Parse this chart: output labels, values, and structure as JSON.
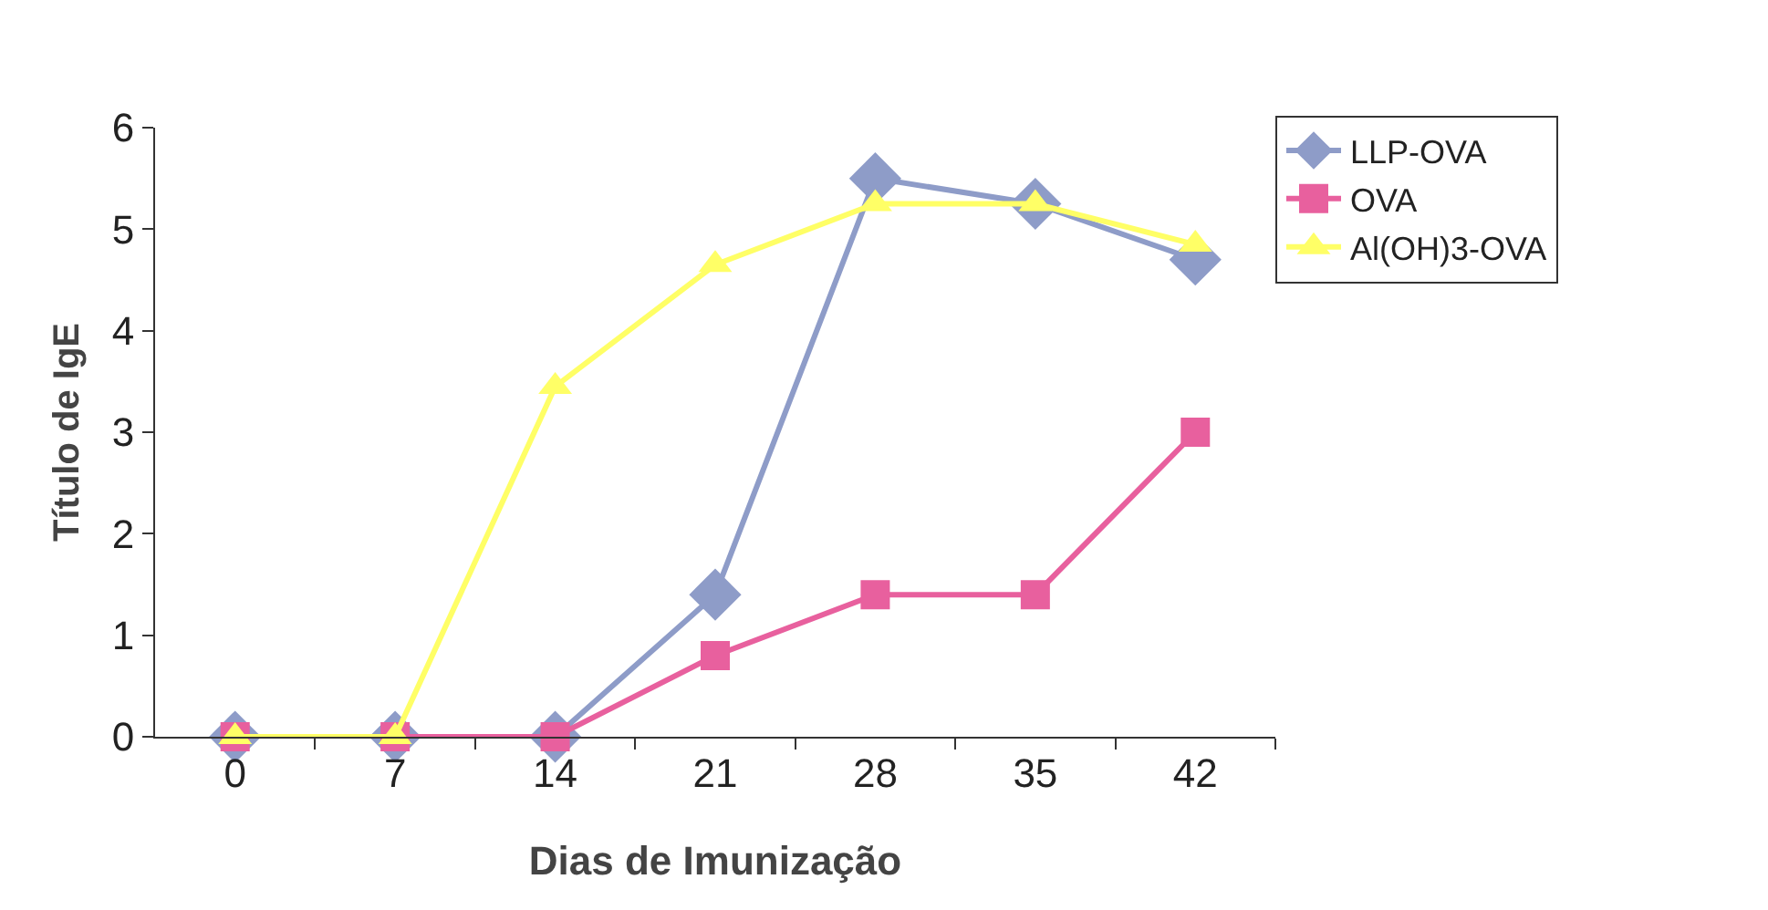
{
  "chart_data": {
    "type": "line",
    "xlabel": "Dias de Imunização",
    "ylabel": "Título de IgE",
    "x": [
      0,
      7,
      14,
      21,
      28,
      35,
      42
    ],
    "series": [
      {
        "name": "LLP-OVA",
        "color": "#8e9cc8",
        "marker": "diamond",
        "values": [
          0,
          0,
          0,
          1.4,
          5.5,
          5.25,
          4.7
        ]
      },
      {
        "name": "OVA",
        "color": "#e8609e",
        "marker": "square",
        "values": [
          0,
          0,
          0,
          0.8,
          1.4,
          1.4,
          3.0
        ]
      },
      {
        "name": "Al(OH)3-OVA",
        "color": "#ffff66",
        "marker": "triangle",
        "values": [
          0,
          0,
          3.45,
          4.65,
          5.25,
          5.25,
          4.85
        ]
      }
    ],
    "xlim": [
      -3.5,
      45.5
    ],
    "xticks": [
      0,
      {
        "value": 3.5,
        "label": null
      },
      7,
      {
        "value": 10.5,
        "label": null
      },
      14,
      {
        "value": 17.5,
        "label": null
      },
      21,
      {
        "value": 24.5,
        "label": null
      },
      28,
      {
        "value": 31.5,
        "label": null
      },
      35,
      {
        "value": 38.5,
        "label": null
      },
      42,
      {
        "value": 45.5,
        "label": null
      }
    ],
    "ylim": [
      0,
      6
    ],
    "yticks": [
      0,
      1,
      2,
      3,
      4,
      5,
      6
    ],
    "legend": "top right"
  }
}
